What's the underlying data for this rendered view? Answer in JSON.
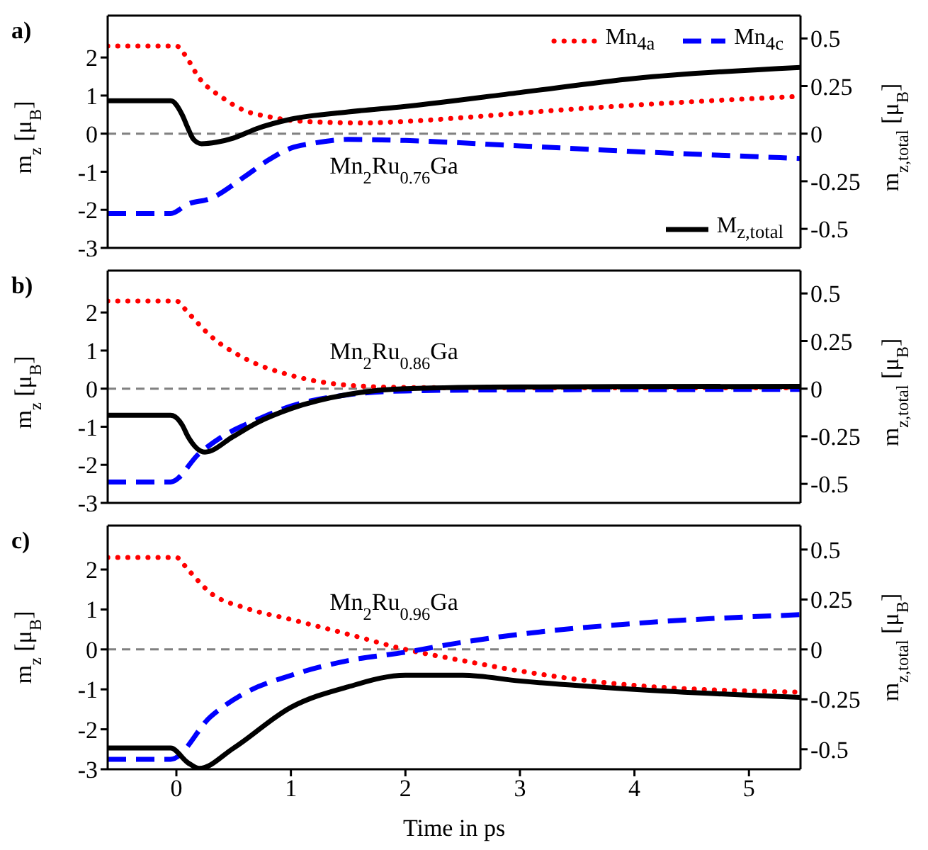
{
  "chart_data": [
    {
      "type": "line",
      "annotations": [
        "a)",
        "Mn$_{2}$Ru$_{0.76}$Ga"
      ],
      "ylabel": "m$_{z}$ [μ$_{B}$]",
      "y2label": "m$_{z,total}$ [μ$_{B}$]",
      "xlim": [
        -0.6,
        5.45
      ],
      "xticks": [
        0,
        1,
        2,
        3,
        4,
        5
      ],
      "ylim": [
        -3,
        3.1
      ],
      "yticks": [
        -3,
        -2,
        -1,
        0,
        1,
        2
      ],
      "y2lim": [
        -0.6,
        0.62
      ],
      "y2ticks": [
        -0.5,
        -0.25,
        0,
        0.25,
        0.5
      ],
      "tick_labels": "y",
      "legend": "right",
      "ref_lines": [
        {
          "axis": "y",
          "value": 0,
          "color": "#808080",
          "line_style": "dashed"
        }
      ],
      "series": [
        {
          "name": "Mn$_{4a}$",
          "color": "#ff0000",
          "line_style": "dotted",
          "x": [
            -0.6,
            0,
            0.1,
            0.19,
            0.4,
            0.6,
            0.8,
            1.0,
            1.3,
            1.58,
            2.0,
            2.5,
            3.13,
            4.0,
            4.7,
            5.45
          ],
          "values": [
            2.3,
            2.3,
            1.95,
            1.5,
            0.95,
            0.6,
            0.45,
            0.35,
            0.3,
            0.28,
            0.32,
            0.42,
            0.57,
            0.75,
            0.87,
            0.98
          ]
        },
        {
          "name": "Mn$_{4c}$",
          "color": "#0000ff",
          "line_style": "dashed",
          "x": [
            -0.6,
            -0.05,
            0.1,
            0.3,
            0.6,
            0.8,
            1.0,
            1.2,
            1.5,
            2.0,
            3.0,
            4.0,
            5.45
          ],
          "values": [
            -2.1,
            -2.1,
            -1.85,
            -1.7,
            -1.12,
            -0.7,
            -0.38,
            -0.25,
            -0.15,
            -0.18,
            -0.32,
            -0.47,
            -0.65
          ]
        },
        {
          "name": "M$_{z,total}$",
          "color": "#000000",
          "line_style": "solid",
          "axis": "y2",
          "x": [
            -0.6,
            -0.05,
            0.05,
            0.1,
            0.15,
            0.22,
            0.35,
            0.5,
            0.7,
            1.0,
            1.5,
            2.0,
            3.0,
            4.0,
            5.45
          ],
          "values": [
            0.173,
            0.173,
            0.1,
            0.03,
            -0.03,
            -0.053,
            -0.045,
            -0.023,
            0.026,
            0.076,
            0.114,
            0.143,
            0.216,
            0.29,
            0.348
          ]
        }
      ]
    },
    {
      "type": "line",
      "annotations": [
        "b)",
        "Mn$_{2}$Ru$_{0.86}$Ga"
      ],
      "ylabel": "m$_{z}$ [μ$_{B}$]",
      "y2label": "m$_{z,total}$ [μ$_{B}$]",
      "xlim": [
        -0.6,
        5.45
      ],
      "xticks": [
        0,
        1,
        2,
        3,
        4,
        5
      ],
      "ylim": [
        -3,
        3.1
      ],
      "yticks": [
        -3,
        -2,
        -1,
        0,
        1,
        2
      ],
      "y2lim": [
        -0.6,
        0.62
      ],
      "y2ticks": [
        -0.5,
        -0.25,
        0,
        0.25,
        0.5
      ],
      "tick_labels": "y",
      "ref_lines": [
        {
          "axis": "y",
          "value": 0,
          "color": "#808080",
          "line_style": "dashed"
        }
      ],
      "series": [
        {
          "color": "#ff0000",
          "line_style": "dotted",
          "x": [
            -0.6,
            0,
            0.1,
            0.3,
            0.6,
            1.0,
            1.5,
            2.0,
            3.0,
            5.45
          ],
          "values": [
            2.3,
            2.3,
            2.0,
            1.38,
            0.79,
            0.35,
            0.09,
            0.03,
            0.02,
            0.02
          ]
        },
        {
          "color": "#0000ff",
          "line_style": "dashed",
          "x": [
            -0.6,
            -0.05,
            0.2,
            0.4,
            0.7,
            1.0,
            1.5,
            2.0,
            3.0,
            5.45
          ],
          "values": [
            -2.45,
            -2.45,
            -1.7,
            -1.26,
            -0.82,
            -0.46,
            -0.16,
            -0.06,
            -0.03,
            -0.02
          ]
        },
        {
          "color": "#000000",
          "line_style": "solid",
          "axis": "y2",
          "x": [
            -0.6,
            -0.05,
            0.05,
            0.1,
            0.25,
            0.5,
            0.7,
            1.0,
            1.5,
            2.0,
            3.0,
            5.45
          ],
          "values": [
            -0.14,
            -0.14,
            -0.19,
            -0.25,
            -0.333,
            -0.25,
            -0.18,
            -0.105,
            -0.03,
            0,
            0.009,
            0.012
          ]
        }
      ]
    },
    {
      "type": "line",
      "annotations": [
        "c)",
        "Mn$_{2}$Ru$_{0.96}$Ga"
      ],
      "xlabel": "Time in ps",
      "ylabel": "m$_{z}$ [μ$_{B}$]",
      "y2label": "m$_{z,total}$ [μ$_{B}$]",
      "xlim": [
        -0.6,
        5.45
      ],
      "xticks": [
        0,
        1,
        2,
        3,
        4,
        5
      ],
      "ylim": [
        -3,
        3.1
      ],
      "yticks": [
        -3,
        -2,
        -1,
        0,
        1,
        2
      ],
      "y2lim": [
        -0.6,
        0.62
      ],
      "y2ticks": [
        -0.5,
        -0.25,
        0,
        0.25,
        0.5
      ],
      "ref_lines": [
        {
          "axis": "y",
          "value": 0,
          "color": "#808080",
          "line_style": "dashed"
        }
      ],
      "series": [
        {
          "color": "#ff0000",
          "line_style": "dotted",
          "x": [
            -0.6,
            0,
            0.1,
            0.3,
            0.6,
            1.0,
            1.5,
            2.0,
            2.5,
            3.0,
            4.0,
            5.45
          ],
          "values": [
            2.3,
            2.3,
            2.0,
            1.41,
            1.04,
            0.75,
            0.38,
            0,
            -0.28,
            -0.54,
            -0.9,
            -1.07
          ]
        },
        {
          "color": "#0000ff",
          "line_style": "dashed",
          "x": [
            -0.6,
            -0.05,
            0.3,
            0.6,
            1.0,
            1.5,
            2.0,
            2.5,
            3.0,
            4.0,
            5.45
          ],
          "values": [
            -2.75,
            -2.75,
            -1.68,
            -1.09,
            -0.65,
            -0.28,
            -0.07,
            0.18,
            0.38,
            0.65,
            0.87
          ]
        },
        {
          "color": "#000000",
          "line_style": "solid",
          "axis": "y2",
          "x": [
            -0.6,
            -0.05,
            0.1,
            0.2,
            0.5,
            1.0,
            1.5,
            2.0,
            2.5,
            3.0,
            4.0,
            5.45
          ],
          "values": [
            -0.494,
            -0.494,
            -0.567,
            -0.596,
            -0.494,
            -0.29,
            -0.187,
            -0.129,
            -0.129,
            -0.158,
            -0.2,
            -0.24
          ]
        }
      ]
    }
  ]
}
